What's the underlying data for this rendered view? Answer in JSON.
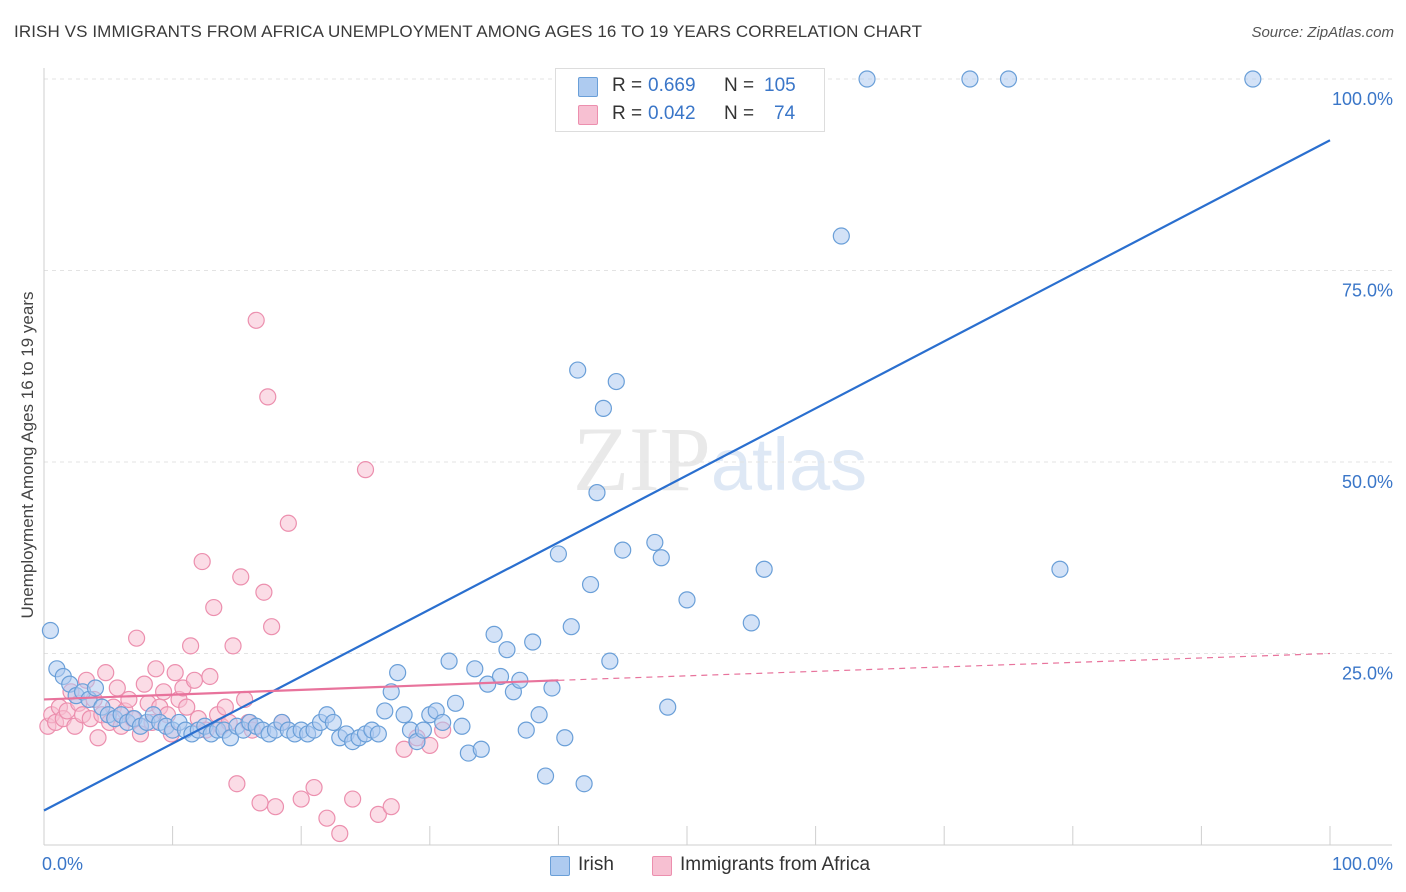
{
  "title": "IRISH VS IMMIGRANTS FROM AFRICA UNEMPLOYMENT AMONG AGES 16 TO 19 YEARS CORRELATION CHART",
  "source": "Source: ZipAtlas.com",
  "colors": {
    "irish_fill": "#aecbf0",
    "irish_stroke": "#6a9fd8",
    "irish_line": "#2a6fcf",
    "africa_fill": "#f7c0d2",
    "africa_stroke": "#ec8fae",
    "africa_line": "#e8739c",
    "tick_label": "#3a76c8",
    "grid": "#e3e3e3"
  },
  "stats": {
    "irish": {
      "r_label": "R =",
      "r_value": "0.669",
      "n_label": "N =",
      "n_value": "105"
    },
    "africa": {
      "r_label": "R =",
      "r_value": "0.042",
      "n_label": "N =",
      "n_value": "74"
    }
  },
  "legend": {
    "irish": "Irish",
    "africa": "Immigrants from Africa"
  },
  "chart_data": {
    "type": "scatter",
    "title": "IRISH VS IMMIGRANTS FROM AFRICA UNEMPLOYMENT AMONG AGES 16 TO 19 YEARS CORRELATION CHART",
    "xlabel": "",
    "ylabel": "Unemployment Among Ages 16 to 19 years",
    "xlim": [
      0,
      100
    ],
    "ylim": [
      0,
      100
    ],
    "x_tick_labels": [
      "0.0%",
      "100.0%"
    ],
    "y_tick_labels": [
      {
        "value": 25,
        "label": "25.0%"
      },
      {
        "value": 50,
        "label": "50.0%"
      },
      {
        "value": 75,
        "label": "75.0%"
      },
      {
        "value": 100,
        "label": "100.0%"
      }
    ],
    "grid": "horizontal dashed",
    "legend_position": "bottom-center",
    "watermark": "ZIPatlas",
    "series": [
      {
        "name": "Irish",
        "trend": {
          "x": [
            0,
            100
          ],
          "y": [
            4.5,
            92
          ]
        },
        "points": [
          [
            0.5,
            28
          ],
          [
            1,
            23
          ],
          [
            1.5,
            22
          ],
          [
            2,
            21
          ],
          [
            2.5,
            19.5
          ],
          [
            3,
            20
          ],
          [
            3.5,
            19
          ],
          [
            4,
            20.5
          ],
          [
            4.5,
            18
          ],
          [
            5,
            17
          ],
          [
            5.5,
            16.5
          ],
          [
            6,
            17
          ],
          [
            6.5,
            16
          ],
          [
            7,
            16.5
          ],
          [
            7.5,
            15.5
          ],
          [
            8,
            16
          ],
          [
            8.5,
            17
          ],
          [
            9,
            16
          ],
          [
            9.5,
            15.5
          ],
          [
            10,
            15
          ],
          [
            10.5,
            16
          ],
          [
            11,
            15
          ],
          [
            11.5,
            14.5
          ],
          [
            12,
            15
          ],
          [
            12.5,
            15.5
          ],
          [
            13,
            14.5
          ],
          [
            13.5,
            15
          ],
          [
            14,
            15
          ],
          [
            14.5,
            14
          ],
          [
            15,
            15.5
          ],
          [
            15.5,
            15
          ],
          [
            16,
            16
          ],
          [
            16.5,
            15.5
          ],
          [
            17,
            15
          ],
          [
            17.5,
            14.5
          ],
          [
            18,
            15
          ],
          [
            18.5,
            16
          ],
          [
            19,
            15
          ],
          [
            19.5,
            14.5
          ],
          [
            20,
            15
          ],
          [
            20.5,
            14.5
          ],
          [
            21,
            15
          ],
          [
            21.5,
            16
          ],
          [
            22,
            17
          ],
          [
            22.5,
            16
          ],
          [
            23,
            14
          ],
          [
            23.5,
            14.5
          ],
          [
            24,
            13.5
          ],
          [
            24.5,
            14
          ],
          [
            25,
            14.5
          ],
          [
            25.5,
            15
          ],
          [
            26,
            14.5
          ],
          [
            26.5,
            17.5
          ],
          [
            27,
            20
          ],
          [
            27.5,
            22.5
          ],
          [
            28,
            17
          ],
          [
            28.5,
            15
          ],
          [
            29,
            13.5
          ],
          [
            29.5,
            15
          ],
          [
            30,
            17
          ],
          [
            30.5,
            17.5
          ],
          [
            31,
            16
          ],
          [
            31.5,
            24
          ],
          [
            32,
            18.5
          ],
          [
            32.5,
            15.5
          ],
          [
            33,
            12
          ],
          [
            33.5,
            23
          ],
          [
            34,
            12.5
          ],
          [
            34.5,
            21
          ],
          [
            35,
            27.5
          ],
          [
            35.5,
            22
          ],
          [
            36,
            25.5
          ],
          [
            36.5,
            20
          ],
          [
            37,
            21.5
          ],
          [
            37.5,
            15
          ],
          [
            38,
            26.5
          ],
          [
            38.5,
            17
          ],
          [
            39,
            9
          ],
          [
            39.5,
            20.5
          ],
          [
            40,
            38
          ],
          [
            40.5,
            14
          ],
          [
            41,
            28.5
          ],
          [
            41.5,
            62
          ],
          [
            42,
            8
          ],
          [
            42.5,
            34
          ],
          [
            43,
            46
          ],
          [
            43.5,
            57
          ],
          [
            44,
            24
          ],
          [
            44.5,
            60.5
          ],
          [
            45,
            38.5
          ],
          [
            47.5,
            39.5
          ],
          [
            48,
            37.5
          ],
          [
            48.5,
            18
          ],
          [
            50,
            32
          ],
          [
            55,
            29
          ],
          [
            56,
            36
          ],
          [
            62,
            79.5
          ],
          [
            64,
            100
          ],
          [
            72,
            100
          ],
          [
            75,
            100
          ],
          [
            79,
            36
          ],
          [
            94,
            100
          ],
          [
            48,
            100
          ],
          [
            54,
            100
          ],
          [
            58,
            100
          ]
        ]
      },
      {
        "name": "Immigrants from Africa",
        "trend": {
          "x": [
            0,
            40,
            100
          ],
          "y": [
            19,
            21.5,
            25
          ]
        },
        "points": [
          [
            0.3,
            15.5
          ],
          [
            0.6,
            17
          ],
          [
            0.9,
            16
          ],
          [
            1.2,
            18
          ],
          [
            1.5,
            16.5
          ],
          [
            1.8,
            17.5
          ],
          [
            2.1,
            20
          ],
          [
            2.4,
            15.5
          ],
          [
            2.7,
            18.5
          ],
          [
            3,
            17
          ],
          [
            3.3,
            21.5
          ],
          [
            3.6,
            16.5
          ],
          [
            3.9,
            19
          ],
          [
            4.2,
            14
          ],
          [
            4.5,
            17
          ],
          [
            4.8,
            22.5
          ],
          [
            5.1,
            16
          ],
          [
            5.4,
            18
          ],
          [
            5.7,
            20.5
          ],
          [
            6,
            15.5
          ],
          [
            6.3,
            17.5
          ],
          [
            6.6,
            19
          ],
          [
            6.9,
            16.5
          ],
          [
            7.2,
            27
          ],
          [
            7.5,
            14.5
          ],
          [
            7.8,
            21
          ],
          [
            8.1,
            18.5
          ],
          [
            8.4,
            16
          ],
          [
            8.7,
            23
          ],
          [
            9,
            18
          ],
          [
            9.3,
            20
          ],
          [
            9.6,
            17
          ],
          [
            9.9,
            14.5
          ],
          [
            10.2,
            22.5
          ],
          [
            10.5,
            19
          ],
          [
            10.8,
            20.5
          ],
          [
            11.1,
            18
          ],
          [
            11.4,
            26
          ],
          [
            11.7,
            21.5
          ],
          [
            12,
            16.5
          ],
          [
            12.3,
            37
          ],
          [
            12.6,
            15
          ],
          [
            12.9,
            22
          ],
          [
            13.2,
            31
          ],
          [
            13.5,
            17
          ],
          [
            13.8,
            15.5
          ],
          [
            14.1,
            18
          ],
          [
            14.4,
            16
          ],
          [
            14.7,
            26
          ],
          [
            15,
            8
          ],
          [
            15.3,
            35
          ],
          [
            15.6,
            19
          ],
          [
            15.9,
            16
          ],
          [
            16.2,
            15
          ],
          [
            16.5,
            68.5
          ],
          [
            16.8,
            5.5
          ],
          [
            17.1,
            33
          ],
          [
            17.4,
            58.5
          ],
          [
            17.7,
            28.5
          ],
          [
            18,
            5
          ],
          [
            18.5,
            16
          ],
          [
            19,
            42
          ],
          [
            20,
            6
          ],
          [
            21,
            7.5
          ],
          [
            22,
            3.5
          ],
          [
            23,
            1.5
          ],
          [
            24,
            6
          ],
          [
            25,
            49
          ],
          [
            26,
            4
          ],
          [
            27,
            5
          ],
          [
            28,
            12.5
          ],
          [
            29,
            14
          ],
          [
            30,
            13
          ],
          [
            31,
            15
          ]
        ]
      }
    ]
  }
}
